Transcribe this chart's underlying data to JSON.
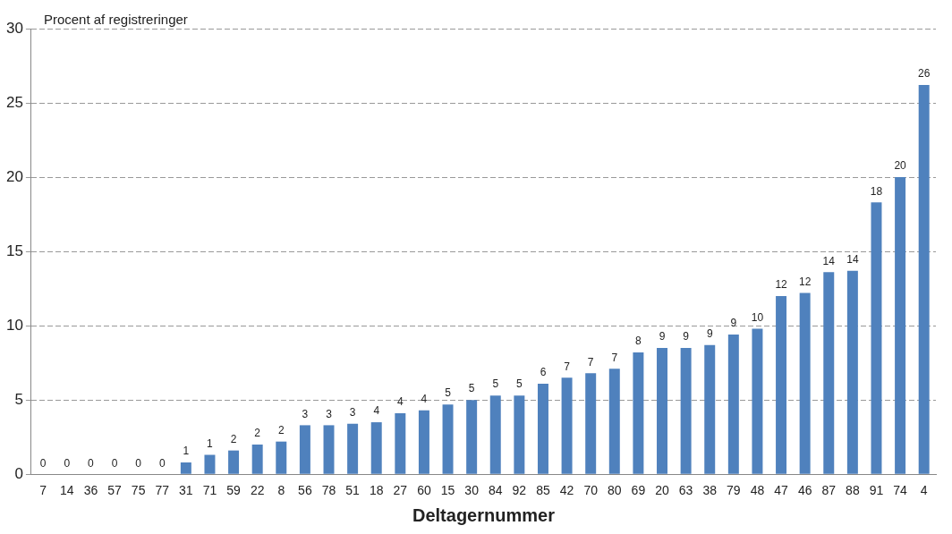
{
  "chart_data": {
    "type": "bar",
    "ylabel": "Procent af registreringer",
    "xlabel": "Deltagernummer",
    "categories": [
      "7",
      "14",
      "36",
      "57",
      "75",
      "77",
      "31",
      "71",
      "59",
      "22",
      "8",
      "56",
      "78",
      "51",
      "18",
      "27",
      "60",
      "15",
      "30",
      "84",
      "92",
      "85",
      "42",
      "70",
      "80",
      "69",
      "20",
      "63",
      "38",
      "79",
      "48",
      "47",
      "46",
      "87",
      "88",
      "91",
      "74",
      "4"
    ],
    "values": [
      0,
      0,
      0,
      0,
      0,
      0,
      0.8,
      1.3,
      1.6,
      2.0,
      2.2,
      3.3,
      3.3,
      3.4,
      3.5,
      4.1,
      4.3,
      4.7,
      5.0,
      5.3,
      5.3,
      6.1,
      6.5,
      6.8,
      7.1,
      8.2,
      8.5,
      8.5,
      8.7,
      9.4,
      9.8,
      12.0,
      12.2,
      13.6,
      13.7,
      18.3,
      20.0,
      26.2
    ],
    "value_labels": [
      "0",
      "0",
      "0",
      "0",
      "0",
      "0",
      "1",
      "1",
      "2",
      "2",
      "2",
      "3",
      "3",
      "3",
      "4",
      "4",
      "4",
      "5",
      "5",
      "5",
      "5",
      "6",
      "7",
      "7",
      "7",
      "8",
      "9",
      "9",
      "9",
      "9",
      "10",
      "12",
      "12",
      "14",
      "14",
      "18",
      "20",
      "26"
    ],
    "color": "#4f81bd",
    "ylim": [
      0,
      30
    ],
    "yticks": [
      0,
      5,
      10,
      15,
      20,
      25,
      30
    ],
    "grid": "y",
    "legend": false
  }
}
